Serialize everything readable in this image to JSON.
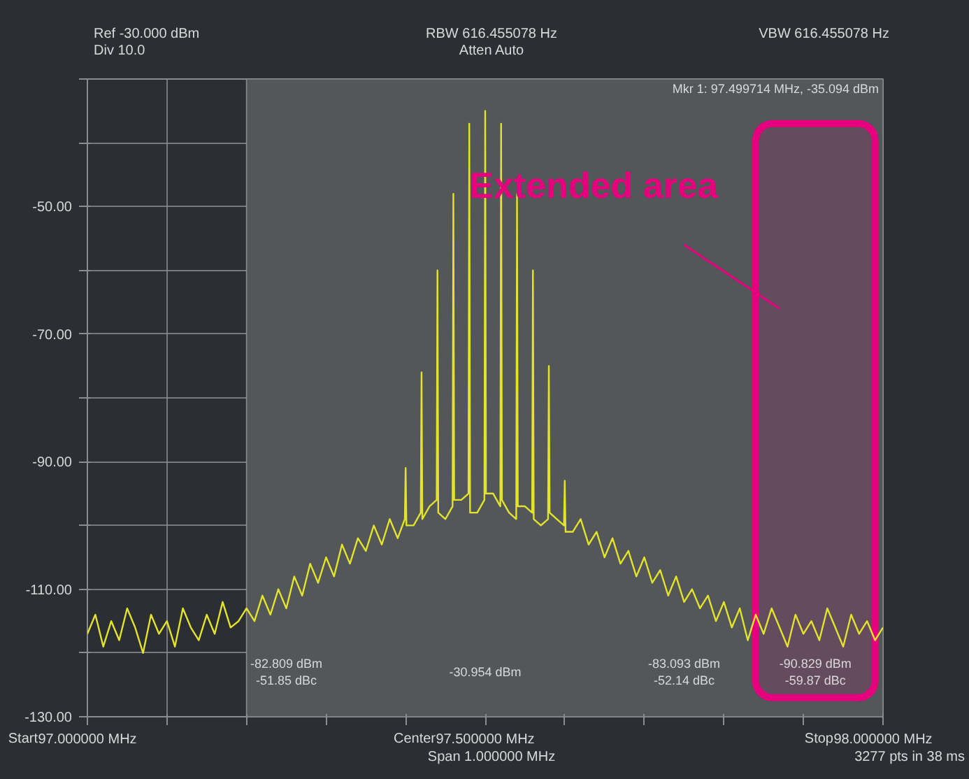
{
  "chart_data": {
    "type": "line",
    "ylabel": null,
    "x": [
      97.0,
      97.01,
      97.02,
      97.03,
      97.04,
      97.05,
      97.06,
      97.07,
      97.08,
      97.09,
      97.1,
      97.11,
      97.12,
      97.13,
      97.14,
      97.15,
      97.16,
      97.17,
      97.18,
      97.19,
      97.2,
      97.21,
      97.22,
      97.23,
      97.24,
      97.25,
      97.26,
      97.27,
      97.28,
      97.29,
      97.3,
      97.31,
      97.32,
      97.33,
      97.34,
      97.35,
      97.36,
      97.37,
      97.38,
      97.39,
      97.399,
      97.4,
      97.401,
      97.41,
      97.419,
      97.42,
      97.421,
      97.43,
      97.439,
      97.44,
      97.441,
      97.45,
      97.459,
      97.46,
      97.461,
      97.47,
      97.479,
      97.48,
      97.481,
      97.49,
      97.499,
      97.5,
      97.501,
      97.51,
      97.519,
      97.52,
      97.521,
      97.53,
      97.539,
      97.54,
      97.541,
      97.55,
      97.559,
      97.56,
      97.561,
      97.57,
      97.579,
      97.58,
      97.581,
      97.59,
      97.599,
      97.6,
      97.601,
      97.61,
      97.62,
      97.63,
      97.64,
      97.65,
      97.66,
      97.67,
      97.68,
      97.69,
      97.7,
      97.71,
      97.72,
      97.73,
      97.74,
      97.75,
      97.76,
      97.77,
      97.78,
      97.79,
      97.8,
      97.81,
      97.82,
      97.83,
      97.84,
      97.85,
      97.86,
      97.87,
      97.88,
      97.89,
      97.9,
      97.91,
      97.92,
      97.93,
      97.94,
      97.95,
      97.96,
      97.97,
      97.98,
      97.99,
      98.0
    ],
    "series": [
      {
        "color": "#e3e32c",
        "values": [
          -117,
          -114,
          -119,
          -115,
          -118,
          -113,
          -116,
          -120,
          -114,
          -117,
          -115,
          -119,
          -113,
          -116,
          -118,
          -114,
          -117,
          -112,
          -116,
          -115,
          -113,
          -115,
          -111,
          -114,
          -110,
          -113,
          -108,
          -111,
          -106,
          -109,
          -105,
          -108,
          -103,
          -106,
          -102,
          -104,
          -100,
          -103,
          -99,
          -102,
          -99,
          -91,
          -100,
          -100,
          -98,
          -76,
          -99,
          -97,
          -96,
          -60,
          -98,
          -99,
          -97,
          -48,
          -96,
          -96,
          -95,
          -37,
          -98,
          -98,
          -96,
          -35,
          -95,
          -95,
          -97,
          -37,
          -96,
          -98,
          -99,
          -48,
          -97,
          -97,
          -98,
          -60,
          -99,
          -100,
          -99,
          -75,
          -98,
          -99,
          -100,
          -93,
          -101,
          -101,
          -99,
          -103,
          -101,
          -105,
          -102,
          -106,
          -104,
          -108,
          -105,
          -109,
          -107,
          -111,
          -108,
          -112,
          -110,
          -113,
          -111,
          -115,
          -112,
          -116,
          -113,
          -118,
          -114,
          -117,
          -113,
          -116,
          -119,
          -114,
          -117,
          -115,
          -118,
          -113,
          -116,
          -119,
          -114,
          -117,
          -115,
          -118,
          -116
        ]
      }
    ],
    "xlim": [
      97.0,
      98.0
    ],
    "xticks": [
      {
        "value": 97.0,
        "label": "97.000000 MHz"
      },
      {
        "value": 97.1,
        "label": null
      },
      {
        "value": 97.2,
        "label": null
      },
      {
        "value": 97.3,
        "label": null
      },
      {
        "value": 97.4,
        "label": null
      },
      {
        "value": 97.5,
        "label": "97.500000 MHz"
      },
      {
        "value": 97.6,
        "label": null
      },
      {
        "value": 97.7,
        "label": null
      },
      {
        "value": 97.8,
        "label": null
      },
      {
        "value": 97.9,
        "label": null
      },
      {
        "value": 98.0,
        "label": "98.000000 MHz"
      }
    ],
    "ylim": [
      -130,
      -30
    ],
    "yticks": [
      {
        "value": -130,
        "label": "-130.00"
      },
      {
        "value": -120,
        "label": null
      },
      {
        "value": -110,
        "label": "-110.00"
      },
      {
        "value": -100,
        "label": null
      },
      {
        "value": -90,
        "label": "-90.00"
      },
      {
        "value": -80,
        "label": null
      },
      {
        "value": -70,
        "label": "-70.00"
      },
      {
        "value": -60,
        "label": null
      },
      {
        "value": -50,
        "label": "-50.00"
      },
      {
        "value": -40,
        "label": null
      },
      {
        "value": -30,
        "label": null
      }
    ],
    "grid": true,
    "marker": "none",
    "line_style": "solid",
    "bands": [
      {
        "axis": "x",
        "from": 97.2,
        "to": 98.0,
        "color": "#53575a"
      },
      {
        "axis": "x",
        "from": 97.84,
        "to": 97.99,
        "label": "Extended area",
        "color": "#e6007e"
      }
    ],
    "annotations": [
      "Ref -30.000 dBm",
      "Div 10.0",
      "RBW 616.455078 Hz",
      "Atten Auto",
      "VBW 616.455078 Hz",
      "Span 1.000000 MHz",
      "3277 pts in 38 ms",
      "Start",
      "Center",
      "Stop",
      "Mkr 1: 97.499714 MHz, -35.094 dBm",
      "-82.809 dBm\n-51.85 dBc",
      "-30.954 dBm",
      "-83.093 dBm\n-52.14 dBc",
      "-90.829 dBm\n-59.87 dBc"
    ]
  }
}
